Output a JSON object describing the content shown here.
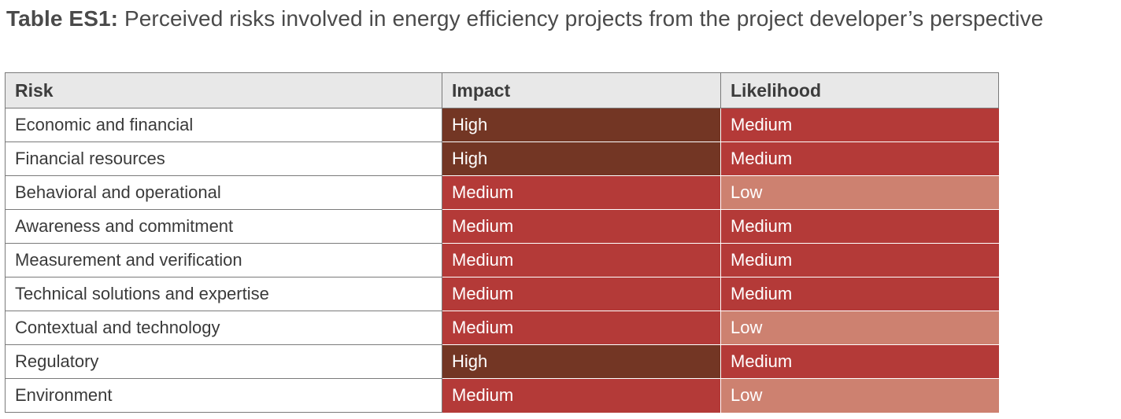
{
  "caption": {
    "label": "Table ES1:",
    "text": " Perceived risks involved in energy efficiency projects from the project developer’s perspective"
  },
  "table": {
    "headers": [
      "Risk",
      "Impact",
      "Likelihood"
    ],
    "rows": [
      {
        "risk": "Economic and financial",
        "impact": "High",
        "likelihood": "Medium"
      },
      {
        "risk": "Financial resources",
        "impact": "High",
        "likelihood": "Medium"
      },
      {
        "risk": "Behavioral and operational",
        "impact": "Medium",
        "likelihood": "Low"
      },
      {
        "risk": "Awareness and commitment",
        "impact": "Medium",
        "likelihood": "Medium"
      },
      {
        "risk": "Measurement and verification",
        "impact": "Medium",
        "likelihood": "Medium"
      },
      {
        "risk": "Technical solutions and expertise",
        "impact": "Medium",
        "likelihood": "Medium"
      },
      {
        "risk": "Contextual and technology",
        "impact": "Medium",
        "likelihood": "Low"
      },
      {
        "risk": "Regulatory",
        "impact": "High",
        "likelihood": "Medium"
      },
      {
        "risk": "Environment",
        "impact": "Medium",
        "likelihood": "Low"
      }
    ]
  },
  "level_colors": {
    "High": "#733624",
    "Medium": "#b43a38",
    "Low": "#cd8170"
  }
}
